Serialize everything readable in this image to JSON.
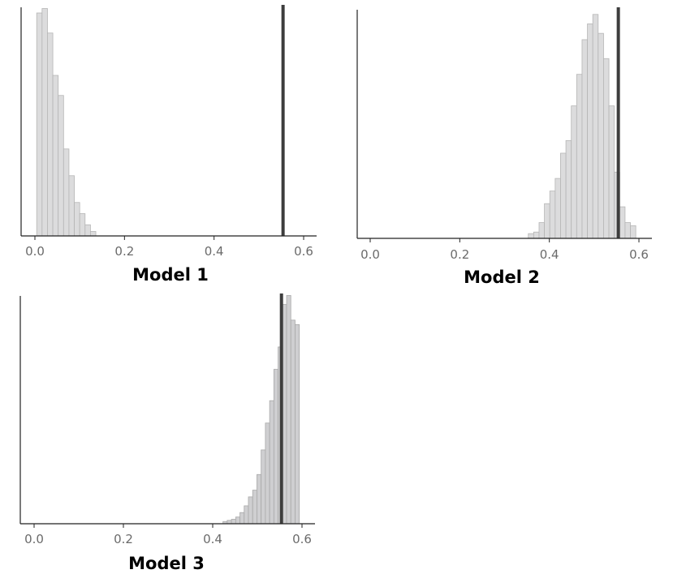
{
  "chart_data": [
    {
      "type": "bar",
      "title": "Model 1",
      "xlim": [
        -0.03,
        0.63
      ],
      "x_ticks": [
        0.0,
        0.2,
        0.4,
        0.6
      ],
      "x_tick_labels": [
        "0.0",
        "0.2",
        "0.4",
        "0.6"
      ],
      "bin_width": 0.012,
      "bin_starts": [
        0.004,
        0.016,
        0.028,
        0.04,
        0.052,
        0.064,
        0.076,
        0.088,
        0.1,
        0.112,
        0.124
      ],
      "values": [
        1.0,
        1.02,
        0.91,
        0.72,
        0.63,
        0.39,
        0.27,
        0.15,
        0.1,
        0.05,
        0.02
      ],
      "reference_x": 0.554,
      "fill_color": "#dcdcdd",
      "edge_color": "#b5b5b5",
      "reference_color": "#3d3d3d"
    },
    {
      "type": "bar",
      "title": "Model 2",
      "xlim": [
        -0.03,
        0.63
      ],
      "x_ticks": [
        0.0,
        0.2,
        0.4,
        0.6
      ],
      "x_tick_labels": [
        "0.0",
        "0.2",
        "0.4",
        "0.6"
      ],
      "bin_width": 0.012,
      "bin_starts": [
        0.353,
        0.365,
        0.377,
        0.389,
        0.401,
        0.413,
        0.425,
        0.437,
        0.449,
        0.461,
        0.473,
        0.485,
        0.497,
        0.509,
        0.521,
        0.533,
        0.545,
        0.557,
        0.569,
        0.581
      ],
      "values": [
        0.015,
        0.02,
        0.05,
        0.11,
        0.15,
        0.19,
        0.27,
        0.31,
        0.42,
        0.52,
        0.63,
        0.68,
        0.71,
        0.65,
        0.57,
        0.42,
        0.21,
        0.1,
        0.05,
        0.04
      ],
      "reference_x": 0.554,
      "fill_color": "#dcdcdd",
      "edge_color": "#b5b5b5",
      "reference_color": "#3d3d3d"
    },
    {
      "type": "bar",
      "title": "Model 3",
      "xlim": [
        -0.03,
        0.63
      ],
      "x_ticks": [
        0.0,
        0.2,
        0.4,
        0.6
      ],
      "x_tick_labels": [
        "0.0",
        "0.2",
        "0.4",
        "0.6"
      ],
      "bin_width": 0.0095,
      "bin_starts": [
        0.423,
        0.4325,
        0.442,
        0.4515,
        0.461,
        0.4705,
        0.48,
        0.4895,
        0.499,
        0.5085,
        0.518,
        0.5275,
        0.537,
        0.5465,
        0.556,
        0.5655,
        0.575,
        0.5845
      ],
      "values": [
        0.01,
        0.015,
        0.02,
        0.03,
        0.05,
        0.08,
        0.12,
        0.15,
        0.22,
        0.33,
        0.45,
        0.55,
        0.69,
        0.79,
        0.98,
        1.02,
        0.91,
        0.89
      ],
      "reference_x": 0.554,
      "fill_color": "#cfcfd1",
      "edge_color": "#a9a9a9",
      "reference_color": "#3d3d3d"
    }
  ]
}
